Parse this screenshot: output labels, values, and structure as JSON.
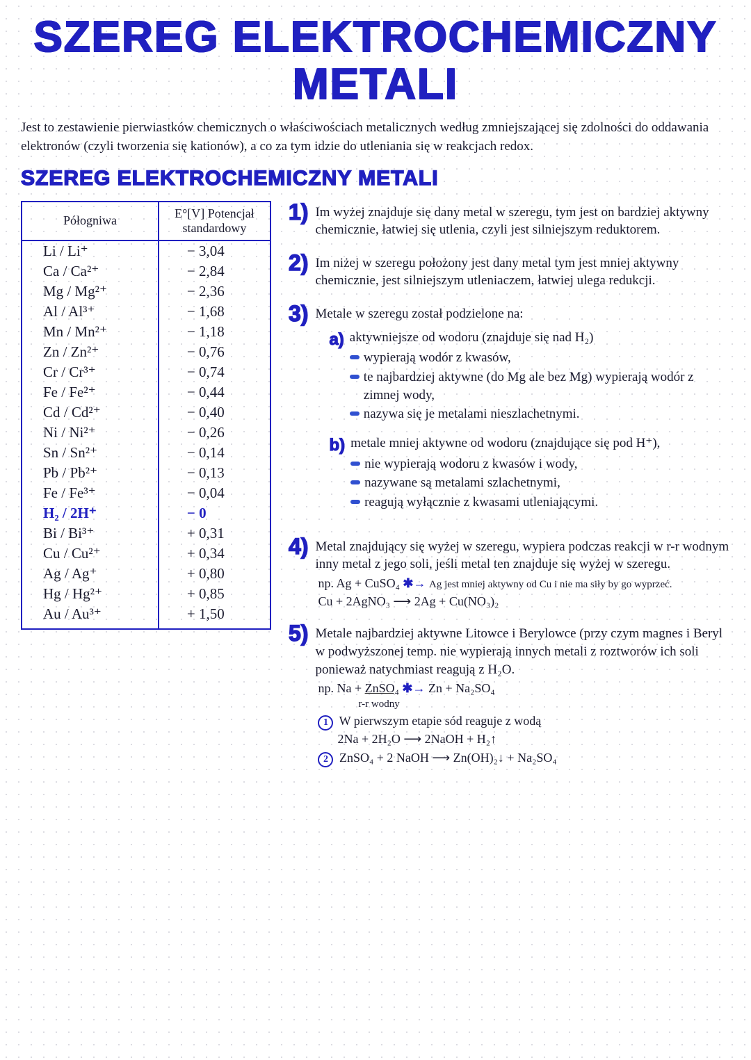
{
  "title_line1": "SZEREG ELEKTROCHEMICZNY",
  "title_line2": "METALI",
  "intro": "Jest to zestawienie pierwiastków chemicznych o właściwościach metalicznych według zmniejszającej się zdolności do oddawania elektronów (czyli tworzenia się kationów), a co za tym idzie do utleniania się w reakcjach redox.",
  "sub_title": "SZEREG ELEKTROCHEMICZNY METALI",
  "table": {
    "head_left": "Półogniwa",
    "head_right": "E°[V] Potencjał standardowy",
    "rows": [
      {
        "cell": "Li / Li⁺",
        "pot": "− 3,04"
      },
      {
        "cell": "Ca / Ca²⁺",
        "pot": "− 2,84"
      },
      {
        "cell": "Mg / Mg²⁺",
        "pot": "− 2,36"
      },
      {
        "cell": "Al / Al³⁺",
        "pot": "− 1,68"
      },
      {
        "cell": "Mn / Mn²⁺",
        "pot": "− 1,18"
      },
      {
        "cell": "Zn / Zn²⁺",
        "pot": "− 0,76"
      },
      {
        "cell": "Cr / Cr³⁺",
        "pot": "− 0,74"
      },
      {
        "cell": "Fe / Fe²⁺",
        "pot": "− 0,44"
      },
      {
        "cell": "Cd / Cd²⁺",
        "pot": "− 0,40"
      },
      {
        "cell": "Ni / Ni²⁺",
        "pot": "− 0,26"
      },
      {
        "cell": "Sn / Sn²⁺",
        "pot": "− 0,14"
      },
      {
        "cell": "Pb / Pb²⁺",
        "pot": "− 0,13"
      },
      {
        "cell": "Fe / Fe³⁺",
        "pot": "− 0,04"
      },
      {
        "cell": "H₂ / 2H⁺",
        "pot": "−  0",
        "hydrogen": true
      },
      {
        "cell": "Bi / Bi³⁺",
        "pot": "+ 0,31"
      },
      {
        "cell": "Cu / Cu²⁺",
        "pot": "+ 0,34"
      },
      {
        "cell": "Ag / Ag⁺",
        "pot": "+ 0,80"
      },
      {
        "cell": "Hg / Hg²⁺",
        "pot": "+ 0,85"
      },
      {
        "cell": "Au / Au³⁺",
        "pot": "+ 1,50"
      }
    ]
  },
  "notes": {
    "n1": "Im wyżej znajduje się dany metal w szeregu, tym jest on bardziej aktywny chemicznie, łatwiej się utlenia, czyli jest silniejszym reduktorem.",
    "n2": "Im niżej w szeregu położony jest dany metal tym jest mniej aktywny chemicznie, jest silniejszym utleniaczem, łatwiej ulega redukcji.",
    "n3_head": "Metale w szeregu został podzielone na:",
    "n3a_head": "aktywniejsze od wodoru (znajduje się nad H₂)",
    "n3a_b1": "wypierają wodór z kwasów,",
    "n3a_b2": "te najbardziej aktywne (do Mg ale bez Mg) wypierają wodór z zimnej wody,",
    "n3a_b3": "nazywa się je metalami nieszlachetnymi.",
    "n3b_head": "metale mniej aktywne od wodoru (znajdujące się pod H⁺),",
    "n3b_b1": "nie wypierają wodoru z kwasów i wody,",
    "n3b_b2": "nazywane są metalami szlachetnymi,",
    "n3b_b3": "reagują wyłącznie z kwasami utleniającymi.",
    "n4_head": "Metal znajdujący się wyżej w szeregu, wypiera podczas reakcji w r-r wodnym inny metal z jego soli, jeśli metal ten znajduje się wyżej w szeregu.",
    "n4_eq1_pre": "np.  Ag + CuSO₄ ",
    "n4_eq1_note": "Ag jest mniej aktywny od Cu i nie ma siły by go wyprzeć.",
    "n4_eq2": "Cu + 2AgNO₃ ⟶ 2Ag + Cu(NO₃)₂",
    "n5_head": "Metale najbardziej aktywne Litowce i Berylowce (przy czym magnes i Beryl w podwyższonej temp. nie wypierają innych metali z roztworów ich soli ponieważ natychmiast reagują z H₂O.",
    "n5_eq_lead": "np.  Na + ",
    "n5_eq_under": "ZnSO₄",
    "n5_eq_tail": " Zn + Na₂SO₄",
    "n5_eq_sub": "r-r wodny",
    "n5_c1a": "W pierwszym etapie sód reaguje z wodą",
    "n5_c1b": "2Na + 2H₂O ⟶ 2NaOH + H₂↑",
    "n5_c2": "ZnSO₄ + 2 NaOH ⟶ Zn(OH)₂↓ + Na₂SO₄"
  },
  "colors": {
    "accent": "#2020c0",
    "ink": "#1a1a2e",
    "dot_grid": "#d0d0d8"
  }
}
